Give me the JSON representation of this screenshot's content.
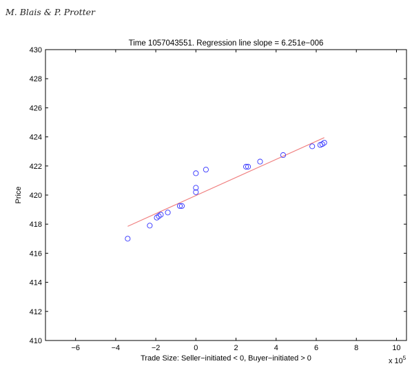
{
  "header": {
    "authors": "M. Blais & P. Protter"
  },
  "chart_data": {
    "type": "scatter",
    "title": "Time 1057043551. Regression line slope = 6.251e−006",
    "xlabel": "Trade Size: Seller−initiated < 0, Buyer−initiated > 0",
    "ylabel": "Price",
    "x_multiplier_label": "x 10",
    "x_multiplier_exponent": "5",
    "xlim": [
      -7.5,
      10.5
    ],
    "ylim": [
      410,
      430
    ],
    "x_ticks": [
      -6,
      -4,
      -2,
      0,
      2,
      4,
      6,
      8,
      10
    ],
    "x_tick_labels": [
      "−6",
      "−4",
      "−2",
      "0",
      "2",
      "4",
      "6",
      "8",
      "10"
    ],
    "y_ticks": [
      410,
      412,
      414,
      416,
      418,
      420,
      422,
      424,
      426,
      428,
      430
    ],
    "y_tick_labels": [
      "410",
      "412",
      "414",
      "416",
      "418",
      "420",
      "422",
      "424",
      "426",
      "428",
      "430"
    ],
    "grid": false,
    "marker_color": "#3333ff",
    "line_color": "#f08080",
    "points": [
      {
        "x": -3.4,
        "y": 417.0
      },
      {
        "x": -2.3,
        "y": 417.9
      },
      {
        "x": -1.95,
        "y": 418.45
      },
      {
        "x": -1.85,
        "y": 418.55
      },
      {
        "x": -1.75,
        "y": 418.65
      },
      {
        "x": -1.4,
        "y": 418.8
      },
      {
        "x": -0.8,
        "y": 419.25
      },
      {
        "x": -0.7,
        "y": 419.25
      },
      {
        "x": 0.0,
        "y": 420.2
      },
      {
        "x": 0.0,
        "y": 420.5
      },
      {
        "x": 0.0,
        "y": 421.5
      },
      {
        "x": 0.5,
        "y": 421.75
      },
      {
        "x": 2.5,
        "y": 421.95
      },
      {
        "x": 2.6,
        "y": 421.95
      },
      {
        "x": 3.2,
        "y": 422.3
      },
      {
        "x": 4.35,
        "y": 422.75
      },
      {
        "x": 5.8,
        "y": 423.35
      },
      {
        "x": 6.2,
        "y": 423.45
      },
      {
        "x": 6.3,
        "y": 423.5
      },
      {
        "x": 6.4,
        "y": 423.6
      }
    ],
    "regression_line": {
      "x": [
        -3.4,
        6.4
      ],
      "y": [
        417.85,
        423.95
      ]
    }
  }
}
